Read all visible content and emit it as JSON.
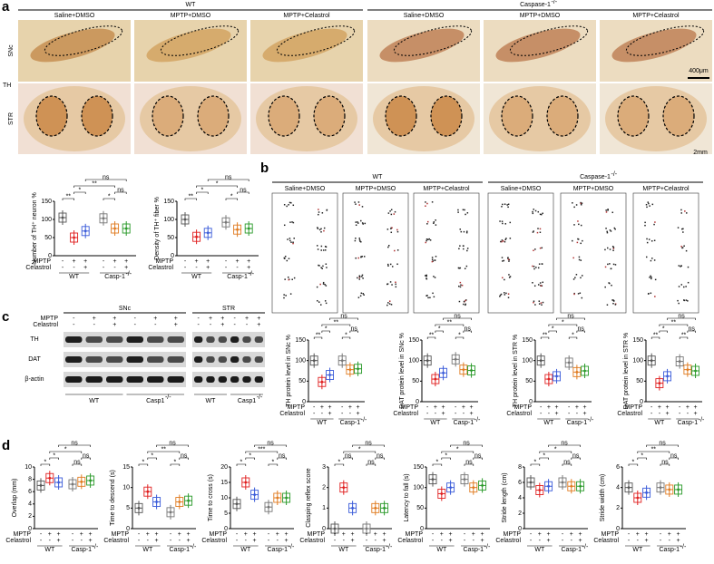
{
  "genotypes": {
    "wt": "WT",
    "ko": "Caspase-1",
    "ko_short": "Casp-1",
    "ko_blot": "Casp1",
    "sup": "-/-"
  },
  "conditions": [
    "Saline+DMSO",
    "MPTP+DMSO",
    "MPTP+Celastrol"
  ],
  "treatments": [
    {
      "label": "MPTP",
      "signs": [
        "-",
        "+",
        "+",
        "-",
        "+",
        "+"
      ]
    },
    {
      "label": "Celastrol",
      "signs": [
        "-",
        "-",
        "+",
        "-",
        "-",
        "+"
      ]
    }
  ],
  "group_colors": [
    "#555555",
    "#e02020",
    "#3a5bd9",
    "#777777",
    "#e07b20",
    "#2a9a2a"
  ],
  "panel_a": {
    "label": "a",
    "rows": [
      "SNc",
      "STR"
    ],
    "stain": "TH",
    "scale_bars": [
      "400μm",
      "2mm"
    ],
    "plots": [
      {
        "ylabel": "Number of TH⁺ neuron %",
        "ylim": [
          0,
          150
        ],
        "yticks": [
          0,
          50,
          100,
          150
        ],
        "medians": [
          105,
          50,
          68,
          103,
          75,
          75
        ],
        "sig": [
          {
            "from": 0,
            "to": 1,
            "label": "**"
          },
          {
            "from": 1,
            "to": 2,
            "label": "*"
          },
          {
            "from": 3,
            "to": 4,
            "label": "*"
          },
          {
            "from": 4,
            "to": 5,
            "label": "ns"
          },
          {
            "from": 1,
            "to": 4,
            "label": "**"
          },
          {
            "from": 2,
            "to": 5,
            "label": "ns"
          }
        ]
      },
      {
        "ylabel": "Density of TH⁺ fiber %",
        "ylim": [
          0,
          150
        ],
        "yticks": [
          0,
          50,
          100,
          150
        ],
        "medians": [
          100,
          52,
          63,
          92,
          72,
          75
        ],
        "sig": [
          {
            "from": 0,
            "to": 1,
            "label": "**"
          },
          {
            "from": 1,
            "to": 2,
            "label": "*"
          },
          {
            "from": 3,
            "to": 4,
            "label": "*"
          },
          {
            "from": 4,
            "to": 5,
            "label": "ns"
          },
          {
            "from": 1,
            "to": 4,
            "label": "*"
          },
          {
            "from": 2,
            "to": 5,
            "label": "ns"
          }
        ]
      }
    ]
  },
  "panel_b": {
    "label": "b",
    "plots": [
      {
        "ylabel": "TH protein level in SNc %",
        "ylim": [
          0,
          150
        ],
        "yticks": [
          0,
          50,
          100,
          150
        ],
        "medians": [
          100,
          48,
          65,
          100,
          78,
          80
        ],
        "sig": [
          {
            "from": 0,
            "to": 1,
            "label": "**"
          },
          {
            "from": 1,
            "to": 2,
            "label": "*"
          },
          {
            "from": 3,
            "to": 4,
            "label": "*"
          },
          {
            "from": 4,
            "to": 5,
            "label": "ns"
          },
          {
            "from": 1,
            "to": 4,
            "label": "**"
          },
          {
            "from": 2,
            "to": 5,
            "label": "ns"
          }
        ]
      },
      {
        "ylabel": "DAT protein level in SNc %",
        "ylim": [
          0,
          150
        ],
        "yticks": [
          0,
          50,
          100,
          150
        ],
        "medians": [
          100,
          55,
          70,
          103,
          78,
          76
        ],
        "sig": [
          {
            "from": 0,
            "to": 1,
            "label": "**"
          },
          {
            "from": 1,
            "to": 2,
            "label": "*"
          },
          {
            "from": 3,
            "to": 4,
            "label": "*"
          },
          {
            "from": 4,
            "to": 5,
            "label": "ns"
          },
          {
            "from": 1,
            "to": 4,
            "label": "**"
          },
          {
            "from": 2,
            "to": 5,
            "label": "ns"
          }
        ]
      },
      {
        "ylabel": "TH protein level in STR %",
        "ylim": [
          0,
          150
        ],
        "yticks": [
          0,
          50,
          100,
          150
        ],
        "medians": [
          100,
          55,
          62,
          95,
          72,
          75
        ],
        "sig": [
          {
            "from": 0,
            "to": 1,
            "label": "**"
          },
          {
            "from": 1,
            "to": 2,
            "label": "*"
          },
          {
            "from": 3,
            "to": 4,
            "label": "*"
          },
          {
            "from": 4,
            "to": 5,
            "label": "ns"
          },
          {
            "from": 1,
            "to": 4,
            "label": "*"
          },
          {
            "from": 2,
            "to": 5,
            "label": "ns"
          }
        ]
      },
      {
        "ylabel": "DAT protein level in STR %",
        "ylim": [
          0,
          150
        ],
        "yticks": [
          0,
          50,
          100,
          150
        ],
        "medians": [
          100,
          45,
          62,
          98,
          78,
          75
        ],
        "sig": [
          {
            "from": 0,
            "to": 1,
            "label": "**"
          },
          {
            "from": 1,
            "to": 2,
            "label": "*"
          },
          {
            "from": 3,
            "to": 4,
            "label": "**"
          },
          {
            "from": 4,
            "to": 5,
            "label": "ns"
          },
          {
            "from": 1,
            "to": 4,
            "label": "**"
          },
          {
            "from": 2,
            "to": 5,
            "label": "ns"
          }
        ]
      }
    ]
  },
  "panel_c": {
    "label": "c",
    "regions": [
      "SNc",
      "STR"
    ],
    "blots": [
      "TH",
      "DAT",
      "β-actin"
    ]
  },
  "panel_d": {
    "label": "d",
    "plots": [
      {
        "ylabel": "Overlap (mm)",
        "ylim": [
          0,
          10
        ],
        "yticks": [
          0,
          2,
          4,
          6,
          8,
          10
        ],
        "medians": [
          7,
          8.2,
          7.5,
          7.2,
          7.6,
          7.8
        ],
        "sig": [
          {
            "from": 0,
            "to": 1,
            "label": "*"
          },
          {
            "from": 1,
            "to": 2,
            "label": "*"
          },
          {
            "from": 3,
            "to": 4,
            "label": "ns"
          },
          {
            "from": 4,
            "to": 5,
            "label": "ns"
          },
          {
            "from": 1,
            "to": 4,
            "label": "*"
          },
          {
            "from": 2,
            "to": 5,
            "label": "ns"
          }
        ]
      },
      {
        "ylabel": "Time to descend (s)",
        "ylim": [
          0,
          15
        ],
        "yticks": [
          0,
          5,
          10,
          15
        ],
        "medians": [
          5,
          9,
          6.5,
          4,
          6.5,
          6.8
        ],
        "sig": [
          {
            "from": 0,
            "to": 1,
            "label": "*"
          },
          {
            "from": 1,
            "to": 2,
            "label": "*"
          },
          {
            "from": 3,
            "to": 4,
            "label": "*"
          },
          {
            "from": 4,
            "to": 5,
            "label": "ns"
          },
          {
            "from": 1,
            "to": 4,
            "label": "**"
          },
          {
            "from": 2,
            "to": 5,
            "label": "ns"
          }
        ]
      },
      {
        "ylabel": "Time to cross (s)",
        "ylim": [
          0,
          20
        ],
        "yticks": [
          0,
          5,
          10,
          15,
          20
        ],
        "medians": [
          8,
          15,
          11,
          7,
          10,
          10
        ],
        "sig": [
          {
            "from": 0,
            "to": 1,
            "label": "*"
          },
          {
            "from": 1,
            "to": 2,
            "label": "*"
          },
          {
            "from": 3,
            "to": 4,
            "label": "*"
          },
          {
            "from": 4,
            "to": 5,
            "label": "ns"
          },
          {
            "from": 1,
            "to": 4,
            "label": "***"
          },
          {
            "from": 2,
            "to": 5,
            "label": "ns"
          }
        ]
      },
      {
        "ylabel": "Clasping reflex score",
        "ylim": [
          0,
          3
        ],
        "yticks": [
          0,
          1,
          2,
          3
        ],
        "medians": [
          0,
          2,
          1,
          0,
          1,
          1
        ],
        "sig": [
          {
            "from": 0,
            "to": 1,
            "label": "*"
          },
          {
            "from": 1,
            "to": 2,
            "label": "ns"
          },
          {
            "from": 3,
            "to": 4,
            "label": "ns"
          },
          {
            "from": 4,
            "to": 5,
            "label": "ns"
          },
          {
            "from": 1,
            "to": 4,
            "label": "*"
          },
          {
            "from": 2,
            "to": 5,
            "label": "ns"
          }
        ]
      },
      {
        "ylabel": "Latency to fall (s)",
        "ylim": [
          0,
          150
        ],
        "yticks": [
          0,
          50,
          100,
          150
        ],
        "medians": [
          120,
          85,
          100,
          120,
          100,
          105
        ],
        "sig": [
          {
            "from": 0,
            "to": 1,
            "label": "*"
          },
          {
            "from": 1,
            "to": 2,
            "label": "*"
          },
          {
            "from": 3,
            "to": 4,
            "label": "ns"
          },
          {
            "from": 4,
            "to": 5,
            "label": "ns"
          },
          {
            "from": 1,
            "to": 4,
            "label": "*"
          },
          {
            "from": 2,
            "to": 5,
            "label": "ns"
          }
        ]
      },
      {
        "ylabel": "Stride length (cm)",
        "ylim": [
          0,
          8
        ],
        "yticks": [
          0,
          2,
          4,
          6,
          8
        ],
        "medians": [
          6,
          5,
          5.5,
          6,
          5.5,
          5.5
        ],
        "sig": [
          {
            "from": 0,
            "to": 1,
            "label": "*"
          },
          {
            "from": 1,
            "to": 2,
            "label": "*"
          },
          {
            "from": 3,
            "to": 4,
            "label": "ns"
          },
          {
            "from": 4,
            "to": 5,
            "label": "ns"
          },
          {
            "from": 1,
            "to": 4,
            "label": "*"
          },
          {
            "from": 2,
            "to": 5,
            "label": "ns"
          }
        ]
      },
      {
        "ylabel": "Stride width (cm)",
        "ylim": [
          0,
          6
        ],
        "yticks": [
          0,
          2,
          4,
          6
        ],
        "medians": [
          4,
          3,
          3.5,
          4,
          3.8,
          3.8
        ],
        "sig": [
          {
            "from": 0,
            "to": 1,
            "label": "*"
          },
          {
            "from": 1,
            "to": 2,
            "label": "*"
          },
          {
            "from": 3,
            "to": 4,
            "label": "ns"
          },
          {
            "from": 4,
            "to": 5,
            "label": "ns"
          },
          {
            "from": 1,
            "to": 4,
            "label": "**"
          },
          {
            "from": 2,
            "to": 5,
            "label": "ns"
          }
        ]
      }
    ]
  }
}
